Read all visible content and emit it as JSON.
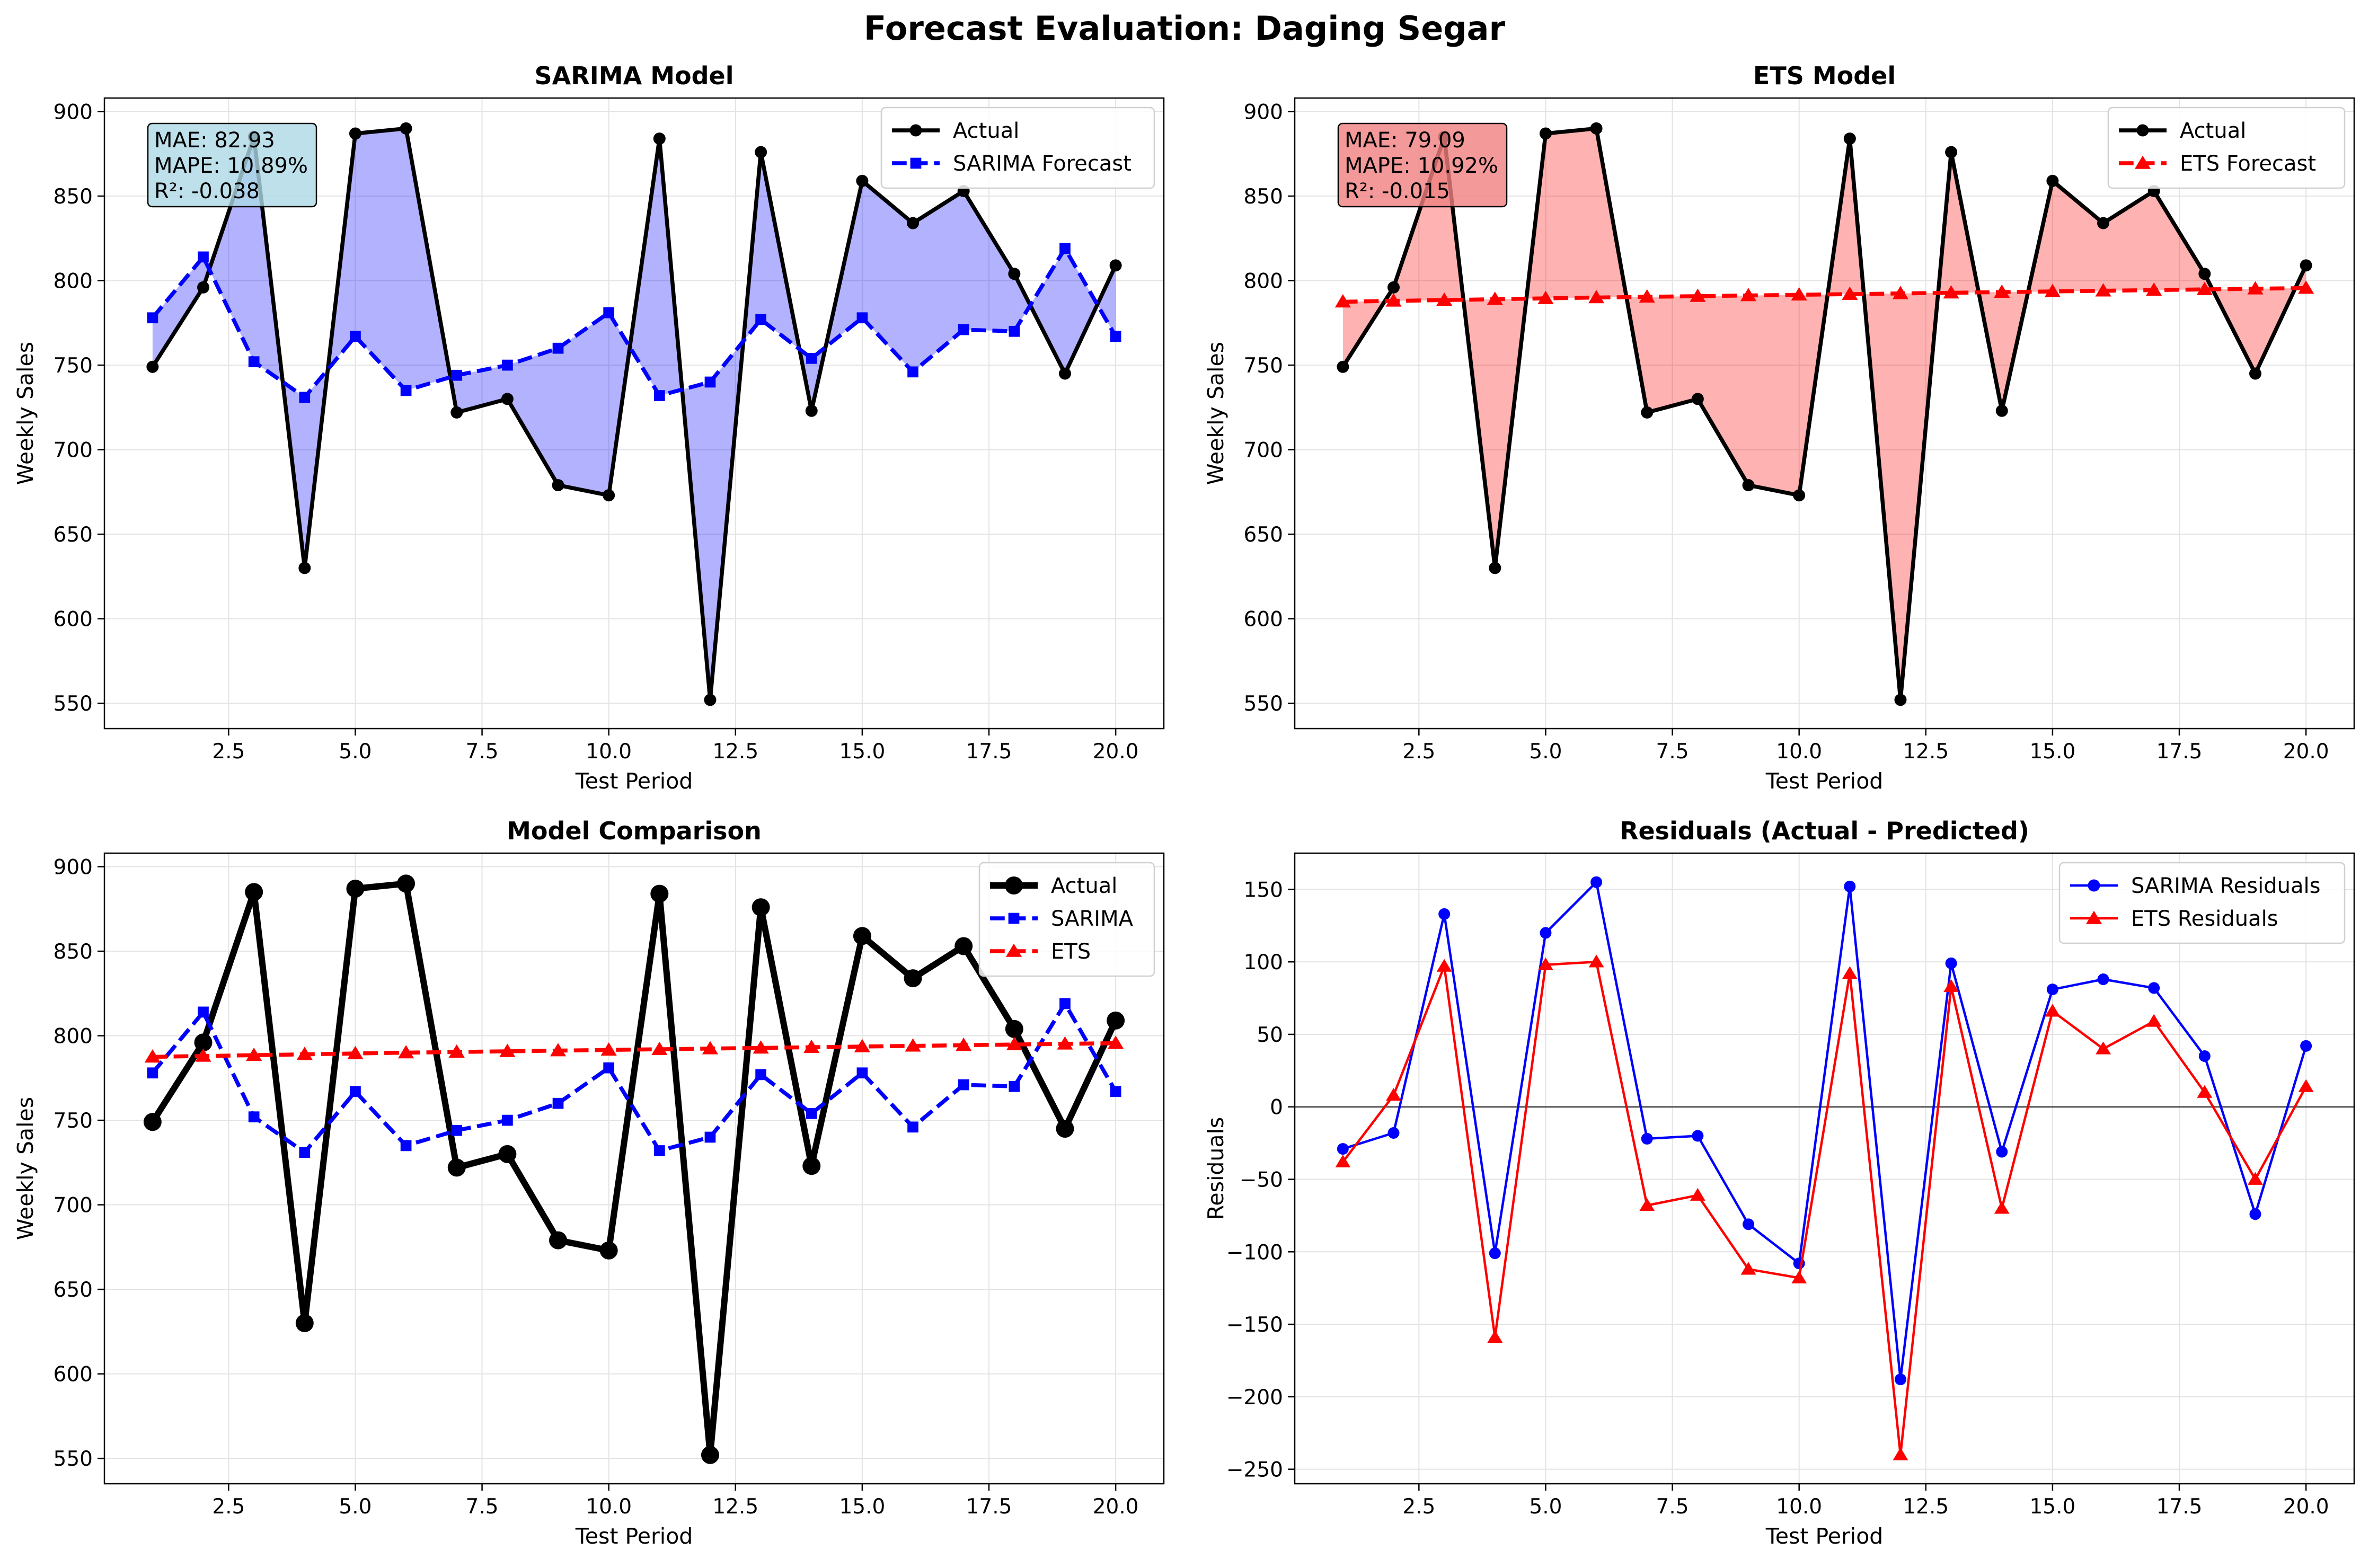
{
  "figure_title": "Forecast Evaluation: Daging Segar",
  "colors": {
    "actual": "#000000",
    "sarima": "#0000ff",
    "ets": "#ff0000",
    "sarima_fill": "#aaaaff",
    "ets_fill": "#ffb3b3",
    "sarima_box": "#add8e6",
    "ets_box": "#f08080"
  },
  "chart_data": [
    {
      "id": "sarima",
      "type": "line",
      "title": "SARIMA Model",
      "xlabel": "Test Period",
      "ylabel": "Weekly Sales",
      "xlim": [
        0.05,
        20.95
      ],
      "ylim": [
        535,
        908
      ],
      "xticks": [
        2.5,
        5.0,
        7.5,
        10.0,
        12.5,
        15.0,
        17.5,
        20.0
      ],
      "xtick_labels": [
        "2.5",
        "5.0",
        "7.5",
        "10.0",
        "12.5",
        "15.0",
        "17.5",
        "20.0"
      ],
      "yticks": [
        550,
        600,
        650,
        700,
        750,
        800,
        850,
        900
      ],
      "ytick_labels": [
        "550",
        "600",
        "650",
        "700",
        "750",
        "800",
        "850",
        "900"
      ],
      "grid": true,
      "legend": "upper-right",
      "fill_between": [
        "Actual",
        "SARIMA Forecast"
      ],
      "metrics_text": [
        "MAE: 82.93",
        "MAPE: 10.89%",
        "R²: -0.038"
      ],
      "x": [
        1,
        2,
        3,
        4,
        5,
        6,
        7,
        8,
        9,
        10,
        11,
        12,
        13,
        14,
        15,
        16,
        17,
        18,
        19,
        20
      ],
      "series": [
        {
          "name": "Actual",
          "color": "#000000",
          "marker": "circle",
          "dash": false,
          "width": 2.5,
          "values": [
            749,
            796,
            885,
            630,
            887,
            890,
            722,
            730,
            679,
            673,
            884,
            552,
            876,
            723,
            859,
            834,
            853,
            804,
            745,
            809
          ]
        },
        {
          "name": "SARIMA Forecast",
          "color": "#0000ff",
          "marker": "square",
          "dash": true,
          "width": 2.5,
          "values": [
            778,
            814,
            752,
            731,
            767,
            735,
            744,
            750,
            760,
            781,
            732,
            740,
            777,
            754,
            778,
            746,
            771,
            770,
            819,
            767
          ]
        }
      ]
    },
    {
      "id": "ets",
      "type": "line",
      "title": "ETS Model",
      "xlabel": "Test Period",
      "ylabel": "Weekly Sales",
      "xlim": [
        0.05,
        20.95
      ],
      "ylim": [
        535,
        908
      ],
      "xticks": [
        2.5,
        5.0,
        7.5,
        10.0,
        12.5,
        15.0,
        17.5,
        20.0
      ],
      "xtick_labels": [
        "2.5",
        "5.0",
        "7.5",
        "10.0",
        "12.5",
        "15.0",
        "17.5",
        "20.0"
      ],
      "yticks": [
        550,
        600,
        650,
        700,
        750,
        800,
        850,
        900
      ],
      "ytick_labels": [
        "550",
        "600",
        "650",
        "700",
        "750",
        "800",
        "850",
        "900"
      ],
      "grid": true,
      "legend": "upper-right",
      "fill_between": [
        "Actual",
        "ETS Forecast"
      ],
      "metrics_text": [
        "MAE: 79.09",
        "MAPE: 10.92%",
        "R²: -0.015"
      ],
      "x": [
        1,
        2,
        3,
        4,
        5,
        6,
        7,
        8,
        9,
        10,
        11,
        12,
        13,
        14,
        15,
        16,
        17,
        18,
        19,
        20
      ],
      "series": [
        {
          "name": "Actual",
          "color": "#000000",
          "marker": "circle",
          "dash": false,
          "width": 2.5,
          "values": [
            749,
            796,
            885,
            630,
            887,
            890,
            722,
            730,
            679,
            673,
            884,
            552,
            876,
            723,
            859,
            834,
            853,
            804,
            745,
            809
          ]
        },
        {
          "name": "ETS Forecast",
          "color": "#ff0000",
          "marker": "triangle",
          "dash": true,
          "width": 2.5,
          "values": [
            787.5,
            788,
            788.5,
            789,
            789.5,
            790,
            790.4,
            790.8,
            791.2,
            791.6,
            792,
            792.4,
            792.8,
            793.2,
            793.6,
            794,
            794.4,
            794.8,
            795.2,
            795.6
          ]
        }
      ]
    },
    {
      "id": "comparison",
      "type": "line",
      "title": "Model Comparison",
      "xlabel": "Test Period",
      "ylabel": "Weekly Sales",
      "xlim": [
        0.05,
        20.95
      ],
      "ylim": [
        535,
        908
      ],
      "xticks": [
        2.5,
        5.0,
        7.5,
        10.0,
        12.5,
        15.0,
        17.5,
        20.0
      ],
      "xtick_labels": [
        "2.5",
        "5.0",
        "7.5",
        "10.0",
        "12.5",
        "15.0",
        "17.5",
        "20.0"
      ],
      "yticks": [
        550,
        600,
        650,
        700,
        750,
        800,
        850,
        900
      ],
      "ytick_labels": [
        "550",
        "600",
        "650",
        "700",
        "750",
        "800",
        "850",
        "900"
      ],
      "grid": true,
      "legend": "upper-right",
      "x": [
        1,
        2,
        3,
        4,
        5,
        6,
        7,
        8,
        9,
        10,
        11,
        12,
        13,
        14,
        15,
        16,
        17,
        18,
        19,
        20
      ],
      "series": [
        {
          "name": "Actual",
          "color": "#000000",
          "marker": "circle",
          "dash": false,
          "width": 4,
          "big": true,
          "values": [
            749,
            796,
            885,
            630,
            887,
            890,
            722,
            730,
            679,
            673,
            884,
            552,
            876,
            723,
            859,
            834,
            853,
            804,
            745,
            809
          ]
        },
        {
          "name": "SARIMA",
          "color": "#0000ff",
          "marker": "square",
          "dash": true,
          "width": 2.5,
          "values": [
            778,
            814,
            752,
            731,
            767,
            735,
            744,
            750,
            760,
            781,
            732,
            740,
            777,
            754,
            778,
            746,
            771,
            770,
            819,
            767
          ]
        },
        {
          "name": "ETS",
          "color": "#ff0000",
          "marker": "triangle",
          "dash": true,
          "width": 2.5,
          "values": [
            787.5,
            788,
            788.5,
            789,
            789.5,
            790,
            790.4,
            790.8,
            791.2,
            791.6,
            792,
            792.4,
            792.8,
            793.2,
            793.6,
            794,
            794.4,
            794.8,
            795.2,
            795.6
          ]
        }
      ]
    },
    {
      "id": "residuals",
      "type": "line",
      "title": "Residuals (Actual - Predicted)",
      "xlabel": "Test Period",
      "ylabel": "Residuals",
      "xlim": [
        0.05,
        20.95
      ],
      "ylim": [
        -260,
        175
      ],
      "xticks": [
        2.5,
        5.0,
        7.5,
        10.0,
        12.5,
        15.0,
        17.5,
        20.0
      ],
      "xtick_labels": [
        "2.5",
        "5.0",
        "7.5",
        "10.0",
        "12.5",
        "15.0",
        "17.5",
        "20.0"
      ],
      "yticks": [
        -250,
        -200,
        -150,
        -100,
        -50,
        0,
        50,
        100,
        150
      ],
      "ytick_labels": [
        "−250",
        "−200",
        "−150",
        "−100",
        "−50",
        "0",
        "50",
        "100",
        "150"
      ],
      "grid": true,
      "legend": "upper-right",
      "zero_line": true,
      "x": [
        1,
        2,
        3,
        4,
        5,
        6,
        7,
        8,
        9,
        10,
        11,
        12,
        13,
        14,
        15,
        16,
        17,
        18,
        19,
        20
      ],
      "series": [
        {
          "name": "SARIMA Residuals",
          "color": "#0000ff",
          "marker": "circle",
          "dash": false,
          "width": 1.5,
          "values": [
            -29,
            -18,
            133,
            -101,
            120,
            155,
            -22,
            -20,
            -81,
            -108,
            152,
            -188,
            99,
            -31,
            81,
            88,
            82,
            35,
            -74,
            42
          ]
        },
        {
          "name": "ETS Residuals",
          "color": "#ff0000",
          "marker": "triangle",
          "dash": false,
          "width": 1.5,
          "values": [
            -38,
            8,
            97,
            -159,
            98,
            100,
            -68,
            -61,
            -112,
            -118,
            92,
            -240,
            83,
            -70,
            66,
            40,
            59,
            10,
            -50,
            14
          ]
        }
      ]
    }
  ]
}
